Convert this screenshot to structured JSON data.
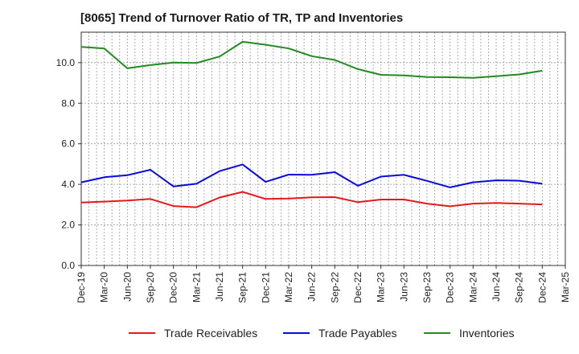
{
  "chart_data": {
    "type": "line",
    "title": "[8065]  Trend of Turnover Ratio of TR, TP and Inventories",
    "xlabel": "",
    "ylabel": "",
    "ylim": [
      0,
      11.5
    ],
    "yticks": [
      "0.0",
      "2.0",
      "4.0",
      "6.0",
      "8.0",
      "10.0"
    ],
    "ytick_values": [
      0,
      2,
      4,
      6,
      8,
      10
    ],
    "x_tick_labels": [
      "Dec-19",
      "Mar-20",
      "Jun-20",
      "Sep-20",
      "Dec-20",
      "Mar-21",
      "Jun-21",
      "Sep-21",
      "Dec-21",
      "Mar-22",
      "Jun-22",
      "Sep-22",
      "Dec-22",
      "Mar-23",
      "Jun-23",
      "Sep-23",
      "Dec-23",
      "Mar-24",
      "Jun-24",
      "Sep-24",
      "Dec-24",
      "Mar-25"
    ],
    "x": [
      "Dec-19",
      "Mar-20",
      "Jun-20",
      "Sep-20",
      "Dec-20",
      "Mar-21",
      "Jun-21",
      "Sep-21",
      "Dec-21",
      "Mar-22",
      "Jun-22",
      "Sep-22",
      "Dec-22",
      "Mar-23",
      "Jun-23",
      "Sep-23",
      "Dec-23",
      "Mar-24",
      "Jun-24",
      "Sep-24",
      "Dec-24"
    ],
    "grid": true,
    "legend_position": "bottom",
    "series": [
      {
        "name": "Trade Receivables",
        "color": "#e31a1c",
        "values": [
          3.1,
          3.15,
          3.2,
          3.28,
          2.93,
          2.87,
          3.35,
          3.63,
          3.28,
          3.3,
          3.36,
          3.37,
          3.12,
          3.25,
          3.25,
          3.05,
          2.92,
          3.05,
          3.08,
          3.05,
          3.01
        ]
      },
      {
        "name": "Trade Payables",
        "color": "#0a0adc",
        "values": [
          4.1,
          4.35,
          4.45,
          4.72,
          3.9,
          4.03,
          4.65,
          4.98,
          4.12,
          4.48,
          4.47,
          4.6,
          3.93,
          4.38,
          4.47,
          4.17,
          3.85,
          4.1,
          4.2,
          4.18,
          4.03
        ]
      },
      {
        "name": "Inventories",
        "color": "#228b22",
        "values": [
          10.78,
          10.7,
          9.72,
          9.88,
          10.0,
          9.98,
          10.3,
          11.03,
          10.88,
          10.7,
          10.32,
          10.13,
          9.68,
          9.4,
          9.37,
          9.29,
          9.28,
          9.25,
          9.33,
          9.42,
          9.6
        ]
      }
    ]
  }
}
